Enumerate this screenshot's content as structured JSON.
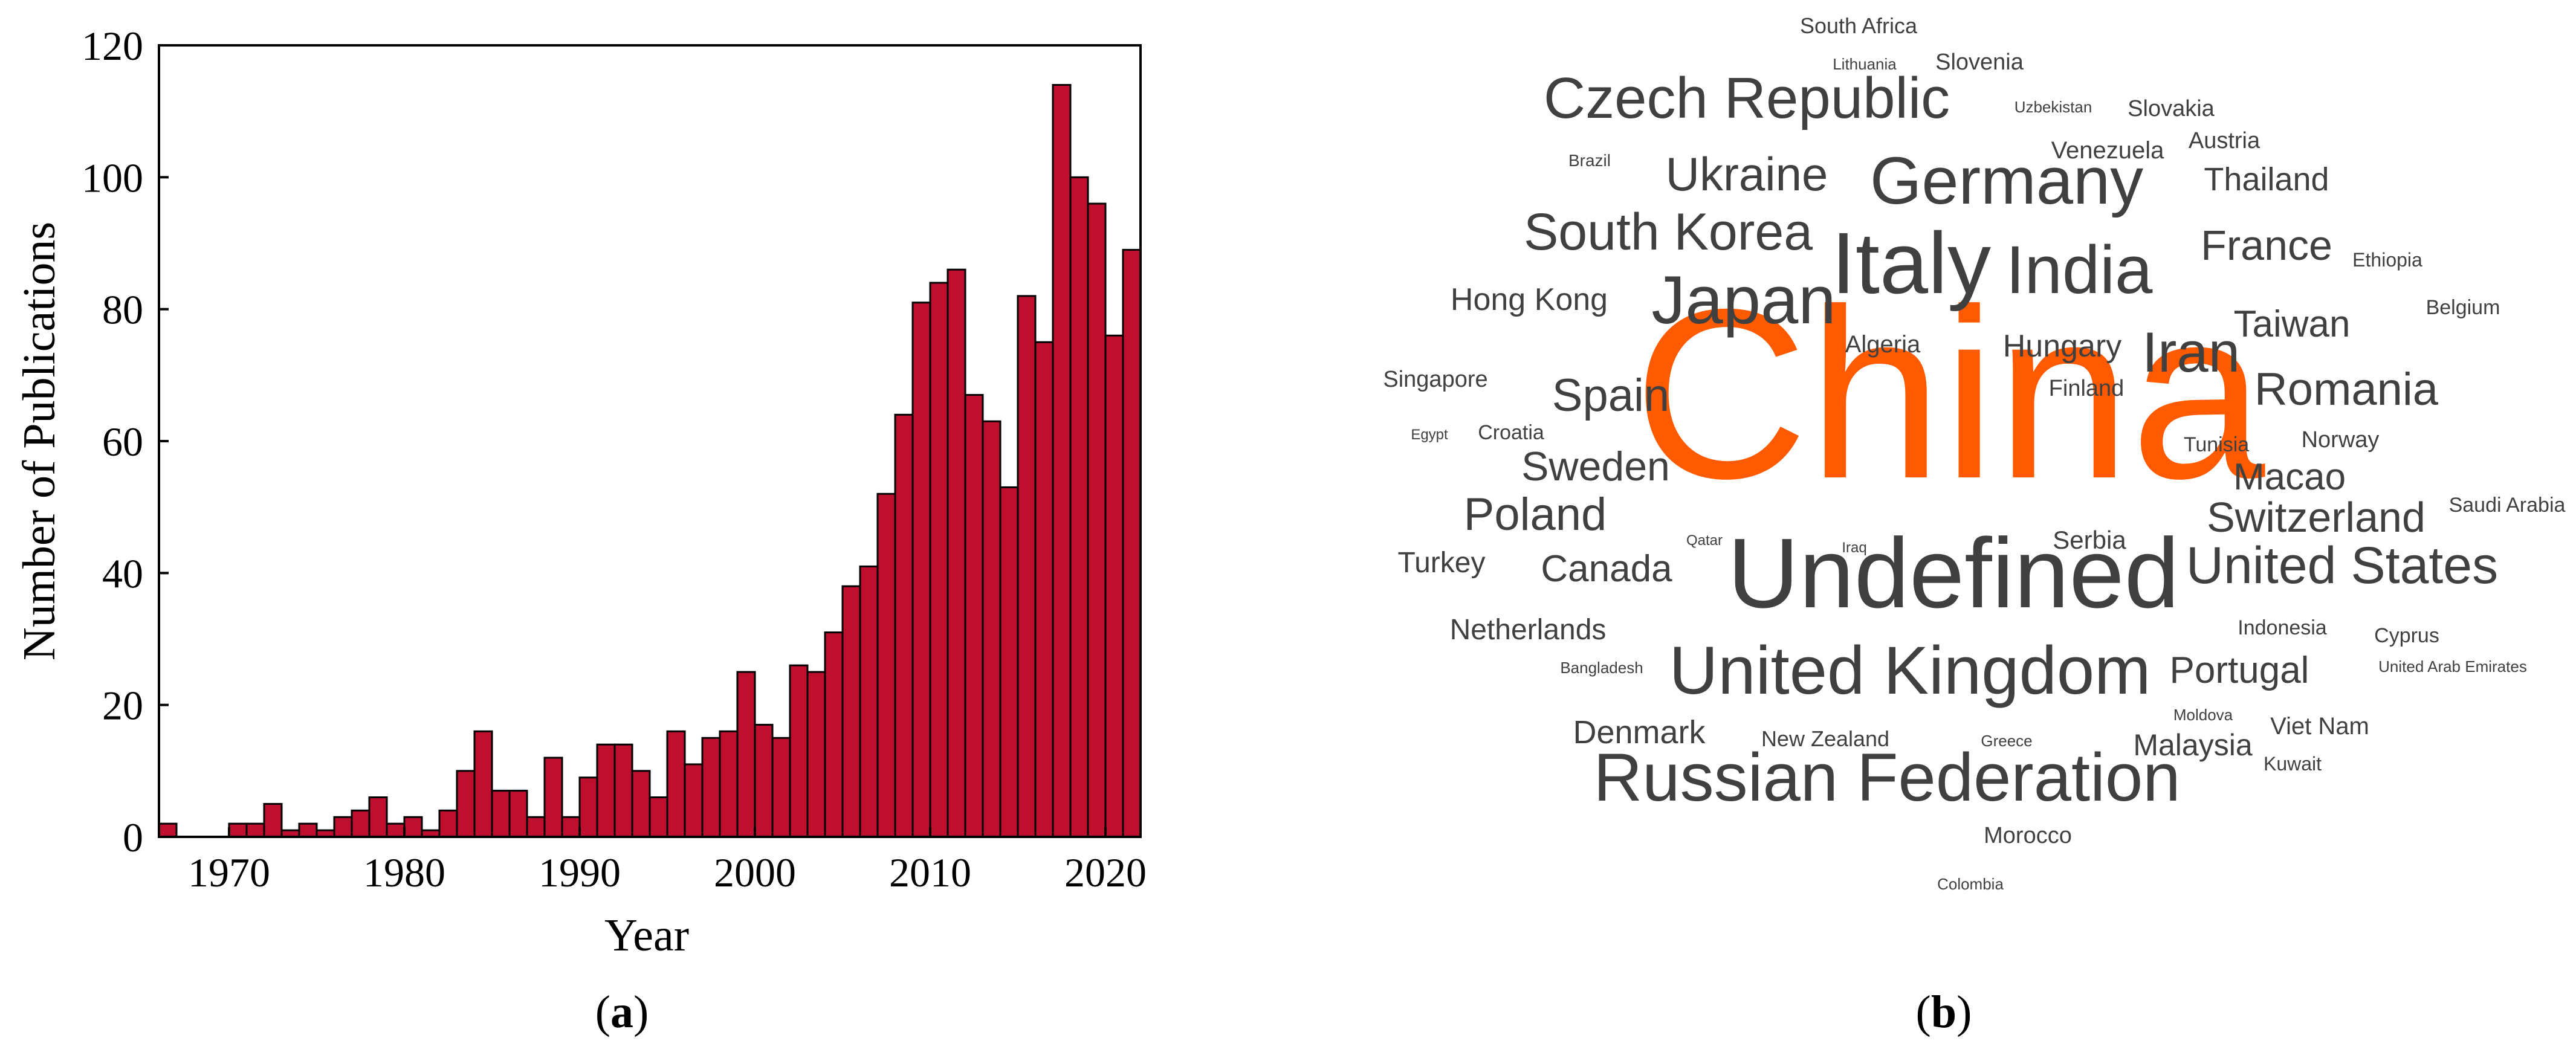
{
  "figure": {
    "panels": [
      {
        "label": "a"
      },
      {
        "label": "b"
      }
    ]
  },
  "chart_data": [
    {
      "type": "bar",
      "xlabel": "Year",
      "ylabel": "Number of Publications",
      "xlim": [
        1966,
        2022
      ],
      "ylim": [
        0,
        120
      ],
      "xticks": [
        1970,
        1980,
        1990,
        2000,
        2010,
        2020
      ],
      "yticks": [
        0,
        20,
        40,
        60,
        80,
        100,
        120
      ],
      "grid": false,
      "bar_color": "#BE0F2F",
      "x": [
        1967,
        1968,
        1969,
        1970,
        1971,
        1972,
        1973,
        1974,
        1975,
        1976,
        1977,
        1978,
        1979,
        1980,
        1981,
        1982,
        1983,
        1984,
        1985,
        1986,
        1987,
        1988,
        1989,
        1990,
        1991,
        1992,
        1993,
        1994,
        1995,
        1996,
        1997,
        1998,
        1999,
        2000,
        2001,
        2002,
        2003,
        2004,
        2005,
        2006,
        2007,
        2008,
        2009,
        2010,
        2011,
        2012,
        2013,
        2014,
        2015,
        2016,
        2017,
        2018,
        2019,
        2020,
        2021,
        2022
      ],
      "values": [
        2,
        0,
        0,
        0,
        2,
        2,
        5,
        1,
        2,
        1,
        3,
        4,
        6,
        2,
        3,
        1,
        4,
        10,
        16,
        7,
        7,
        3,
        12,
        3,
        9,
        14,
        14,
        10,
        6,
        16,
        11,
        15,
        16,
        25,
        17,
        15,
        26,
        25,
        31,
        38,
        41,
        52,
        64,
        81,
        84,
        86,
        67,
        63,
        53,
        82,
        75,
        114,
        100,
        96,
        76,
        89
      ]
    },
    {
      "type": "wordcloud",
      "highlight_color": "#FF5A00",
      "text_color": "#404040",
      "words": [
        {
          "text": "China",
          "weight": 100
        },
        {
          "text": "Undefined",
          "weight": 46
        },
        {
          "text": "Italy",
          "weight": 44
        },
        {
          "text": "United Kingdom",
          "weight": 36
        },
        {
          "text": "Russian Federation",
          "weight": 36
        },
        {
          "text": "Japan",
          "weight": 36
        },
        {
          "text": "India",
          "weight": 36
        },
        {
          "text": "Germany",
          "weight": 34
        },
        {
          "text": "Czech Republic",
          "weight": 30
        },
        {
          "text": "United States",
          "weight": 28
        },
        {
          "text": "South Korea",
          "weight": 28
        },
        {
          "text": "Iran",
          "weight": 30
        },
        {
          "text": "Ukraine",
          "weight": 25
        },
        {
          "text": "Spain",
          "weight": 24
        },
        {
          "text": "Poland",
          "weight": 24
        },
        {
          "text": "Romania",
          "weight": 24
        },
        {
          "text": "Switzerland",
          "weight": 23
        },
        {
          "text": "France",
          "weight": 23
        },
        {
          "text": "Sweden",
          "weight": 22
        },
        {
          "text": "Canada",
          "weight": 20
        },
        {
          "text": "Portugal",
          "weight": 20
        },
        {
          "text": "Macao",
          "weight": 20
        },
        {
          "text": "Taiwan",
          "weight": 20
        },
        {
          "text": "Thailand",
          "weight": 18
        },
        {
          "text": "Denmark",
          "weight": 18
        },
        {
          "text": "Hungary",
          "weight": 17
        },
        {
          "text": "Hong Kong",
          "weight": 17
        },
        {
          "text": "Malaysia",
          "weight": 16
        },
        {
          "text": "Turkey",
          "weight": 16
        },
        {
          "text": "Netherlands",
          "weight": 16
        },
        {
          "text": "Slovenia",
          "weight": 12
        },
        {
          "text": "Venezuela",
          "weight": 13
        },
        {
          "text": "Algeria",
          "weight": 13
        },
        {
          "text": "Finland",
          "weight": 12
        },
        {
          "text": "Serbia",
          "weight": 14
        },
        {
          "text": "Singapore",
          "weight": 12
        },
        {
          "text": "Viet Nam",
          "weight": 13
        },
        {
          "text": "Slovakia",
          "weight": 12
        },
        {
          "text": "Austria",
          "weight": 12
        },
        {
          "text": "South Africa",
          "weight": 11
        },
        {
          "text": "Norway",
          "weight": 12
        },
        {
          "text": "Morocco",
          "weight": 12
        },
        {
          "text": "New Zealand",
          "weight": 11
        },
        {
          "text": "Croatia",
          "weight": 11
        },
        {
          "text": "Belgium",
          "weight": 11
        },
        {
          "text": "Saudi Arabia",
          "weight": 11
        },
        {
          "text": "Tunisia",
          "weight": 11
        },
        {
          "text": "Indonesia",
          "weight": 11
        },
        {
          "text": "Cyprus",
          "weight": 11
        },
        {
          "text": "Kuwait",
          "weight": 10
        },
        {
          "text": "Ethiopia",
          "weight": 10
        },
        {
          "text": "Brazil",
          "weight": 9
        },
        {
          "text": "Uzbekistan",
          "weight": 8
        },
        {
          "text": "Lithuania",
          "weight": 8
        },
        {
          "text": "Bangladesh",
          "weight": 8
        },
        {
          "text": "Moldova",
          "weight": 8
        },
        {
          "text": "Greece",
          "weight": 8
        },
        {
          "text": "Colombia",
          "weight": 8
        },
        {
          "text": "United Arab Emirates",
          "weight": 8
        },
        {
          "text": "Egypt",
          "weight": 8
        },
        {
          "text": "Qatar",
          "weight": 8
        },
        {
          "text": "Iraq",
          "weight": 8
        }
      ]
    }
  ]
}
